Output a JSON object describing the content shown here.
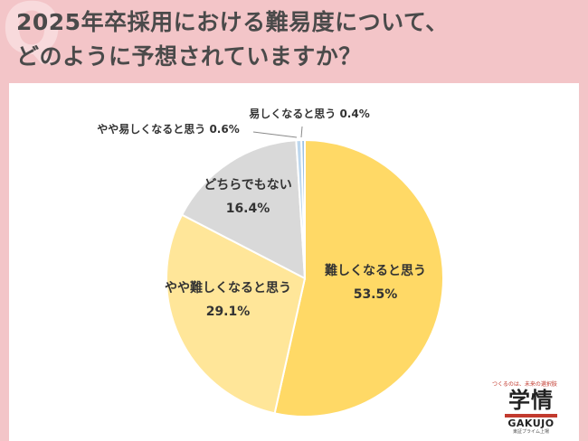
{
  "header": {
    "title_line1": "2025年卒採用における難易度について、",
    "title_line2": "どのように予想されていますか？",
    "decor_mark": "Q"
  },
  "chart_data": {
    "type": "pie",
    "start": "top",
    "direction": "clockwise",
    "slices": [
      {
        "label": "難しくなると思う",
        "value": 53.5,
        "value_label": "53.5%",
        "color": "#ffd966"
      },
      {
        "label": "やや難しくなると思う",
        "value": 29.1,
        "value_label": "29.1%",
        "color": "#ffe699"
      },
      {
        "label": "どちらでもない",
        "value": 16.4,
        "value_label": "16.4%",
        "color": "#d9d9d9"
      },
      {
        "label": "やや易しくなると思う",
        "value": 0.6,
        "value_label": "0.6%",
        "color": "#bdd7ee"
      },
      {
        "label": "易しくなると思う",
        "value": 0.4,
        "value_label": "0.4%",
        "color": "#9dc3e6"
      }
    ]
  },
  "logo": {
    "tagline": "つくるのは、未来の選択肢",
    "kanji": "学情",
    "latin": "GAKUJO",
    "sub": "東証プライム上場"
  }
}
